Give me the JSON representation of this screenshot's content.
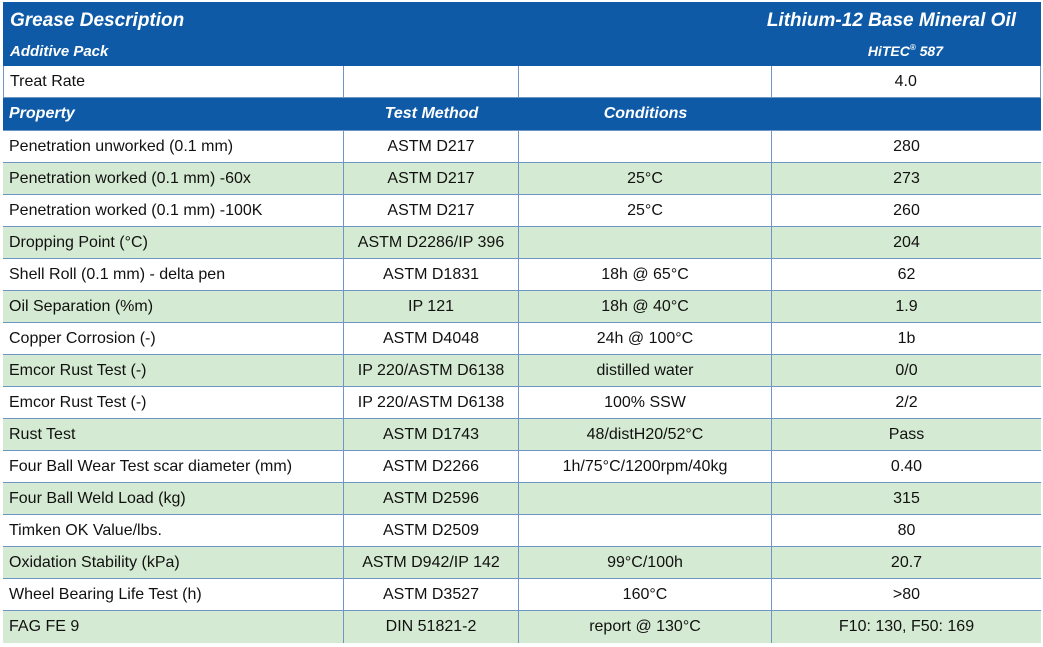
{
  "header": {
    "title": "Grease Description",
    "subtitle": "Additive Pack",
    "product": "Lithium-12 Base Mineral Oil",
    "additive_name": "HiTEC",
    "additive_mark": "®",
    "additive_number": " 587"
  },
  "treat_rate": {
    "label": "Treat Rate",
    "value": "4.0"
  },
  "columns": {
    "property": "Property",
    "method": "Test Method",
    "conditions": "Conditions",
    "value": ""
  },
  "rows": [
    {
      "property": "Penetration unworked (0.1 mm)",
      "method": "ASTM D217",
      "conditions": "",
      "value": "280"
    },
    {
      "property": "Penetration worked (0.1 mm) -60x",
      "method": "ASTM D217",
      "conditions": "25°C",
      "value": "273"
    },
    {
      "property": "Penetration worked (0.1 mm) -100K",
      "method": "ASTM D217",
      "conditions": "25°C",
      "value": "260"
    },
    {
      "property": "Dropping Point (°C)",
      "method": "ASTM D2286/IP 396",
      "conditions": "",
      "value": "204"
    },
    {
      "property": "Shell Roll (0.1 mm) - delta pen",
      "method": "ASTM D1831",
      "conditions": "18h @ 65°C",
      "value": "62"
    },
    {
      "property": "Oil Separation (%m)",
      "method": "IP 121",
      "conditions": "18h @ 40°C",
      "value": "1.9"
    },
    {
      "property": "Copper Corrosion (-)",
      "method": "ASTM D4048",
      "conditions": "24h @ 100°C",
      "value": "1b"
    },
    {
      "property": "Emcor Rust Test (-)",
      "method": "IP 220/ASTM D6138",
      "conditions": "distilled water",
      "value": "0/0"
    },
    {
      "property": "Emcor Rust Test (-)",
      "method": "IP 220/ASTM D6138",
      "conditions": "100% SSW",
      "value": "2/2"
    },
    {
      "property": "Rust Test",
      "method": "ASTM D1743",
      "conditions": "48/distH20/52°C",
      "value": "Pass"
    },
    {
      "property": "Four Ball Wear Test scar diameter (mm)",
      "method": "ASTM D2266",
      "conditions": "1h/75°C/1200rpm/40kg",
      "value": "0.40"
    },
    {
      "property": "Four Ball Weld Load (kg)",
      "method": "ASTM D2596",
      "conditions": "",
      "value": "315"
    },
    {
      "property": "Timken OK Value/lbs.",
      "method": "ASTM D2509",
      "conditions": "",
      "value": "80"
    },
    {
      "property": "Oxidation Stability (kPa)",
      "method": "ASTM D942/IP 142",
      "conditions": "99°C/100h",
      "value": "20.7"
    },
    {
      "property": "Wheel Bearing Life Test (h)",
      "method": "ASTM D3527",
      "conditions": "160°C",
      "value": ">80"
    },
    {
      "property": "FAG FE 9",
      "method": "DIN 51821-2",
      "conditions": "report @ 130°C",
      "value": "F10: 130, F50: 169"
    }
  ],
  "colors": {
    "header_blue": "#0e5aa7",
    "row_green": "#d5ead2",
    "row_white": "#ffffff",
    "grid_line": "#6f96c2"
  }
}
